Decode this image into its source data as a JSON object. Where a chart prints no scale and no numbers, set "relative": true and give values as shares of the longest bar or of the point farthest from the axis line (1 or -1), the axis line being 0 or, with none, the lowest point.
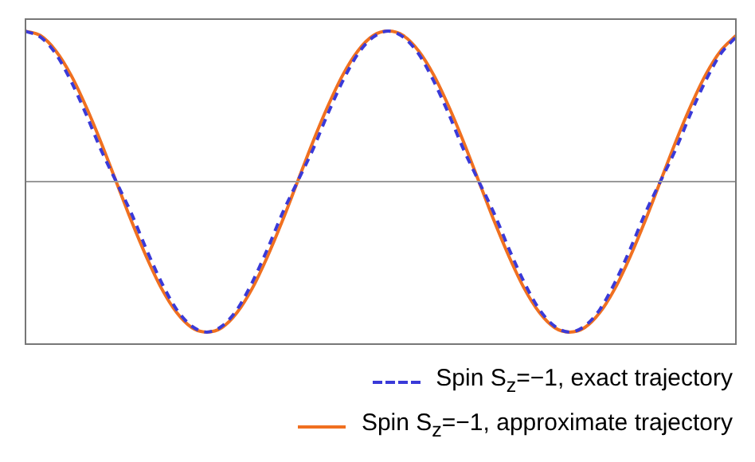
{
  "chart_data": {
    "type": "line",
    "relative": true,
    "legend": "bottom",
    "marker": "none",
    "grid": false,
    "categories": [
      null,
      null,
      null,
      null,
      null,
      null,
      null,
      null,
      null,
      null,
      null,
      null,
      null,
      null,
      null,
      null,
      null,
      null,
      null,
      null,
      null,
      null,
      null,
      null,
      null,
      null,
      null,
      null,
      null,
      null,
      null,
      null,
      null,
      null,
      null,
      null,
      null,
      null,
      null,
      null,
      null,
      null,
      null,
      null,
      null,
      null,
      null,
      null
    ],
    "series": [
      {
        "name": "Spin S$_{z}$=−1, exact trajectory",
        "color": "#3a3ad8",
        "line_style": "dashed",
        "values": [
          1,
          0.96,
          0.85,
          0.67,
          0.45,
          0.21,
          0,
          -0.21,
          -0.45,
          -0.67,
          -0.85,
          -0.96,
          -1,
          -0.96,
          -0.85,
          -0.67,
          -0.45,
          -0.21,
          0,
          0.21,
          0.45,
          0.67,
          0.85,
          0.96,
          1,
          0.96,
          0.85,
          0.67,
          0.45,
          0.21,
          0,
          -0.21,
          -0.45,
          -0.67,
          -0.85,
          -0.96,
          -1,
          -0.96,
          -0.85,
          -0.67,
          -0.45,
          -0.21,
          0,
          0.21,
          0.45,
          0.67,
          0.85,
          0.96
        ]
      },
      {
        "name": "Spin S$_{z}$=−1, approximate trajectory",
        "color": "#f07020",
        "line_style": "solid",
        "values": [
          1,
          0.97,
          0.87,
          0.71,
          0.5,
          0.26,
          0,
          -0.26,
          -0.5,
          -0.71,
          -0.87,
          -0.97,
          -1,
          -0.97,
          -0.87,
          -0.71,
          -0.5,
          -0.26,
          0,
          0.26,
          0.5,
          0.71,
          0.87,
          0.97,
          1,
          0.97,
          0.87,
          0.71,
          0.5,
          0.26,
          0,
          -0.26,
          -0.5,
          -0.71,
          -0.87,
          -0.97,
          -1,
          -0.97,
          -0.87,
          -0.71,
          -0.5,
          -0.26,
          0,
          0.26,
          0.5,
          0.71,
          0.87,
          0.97
        ]
      }
    ]
  }
}
